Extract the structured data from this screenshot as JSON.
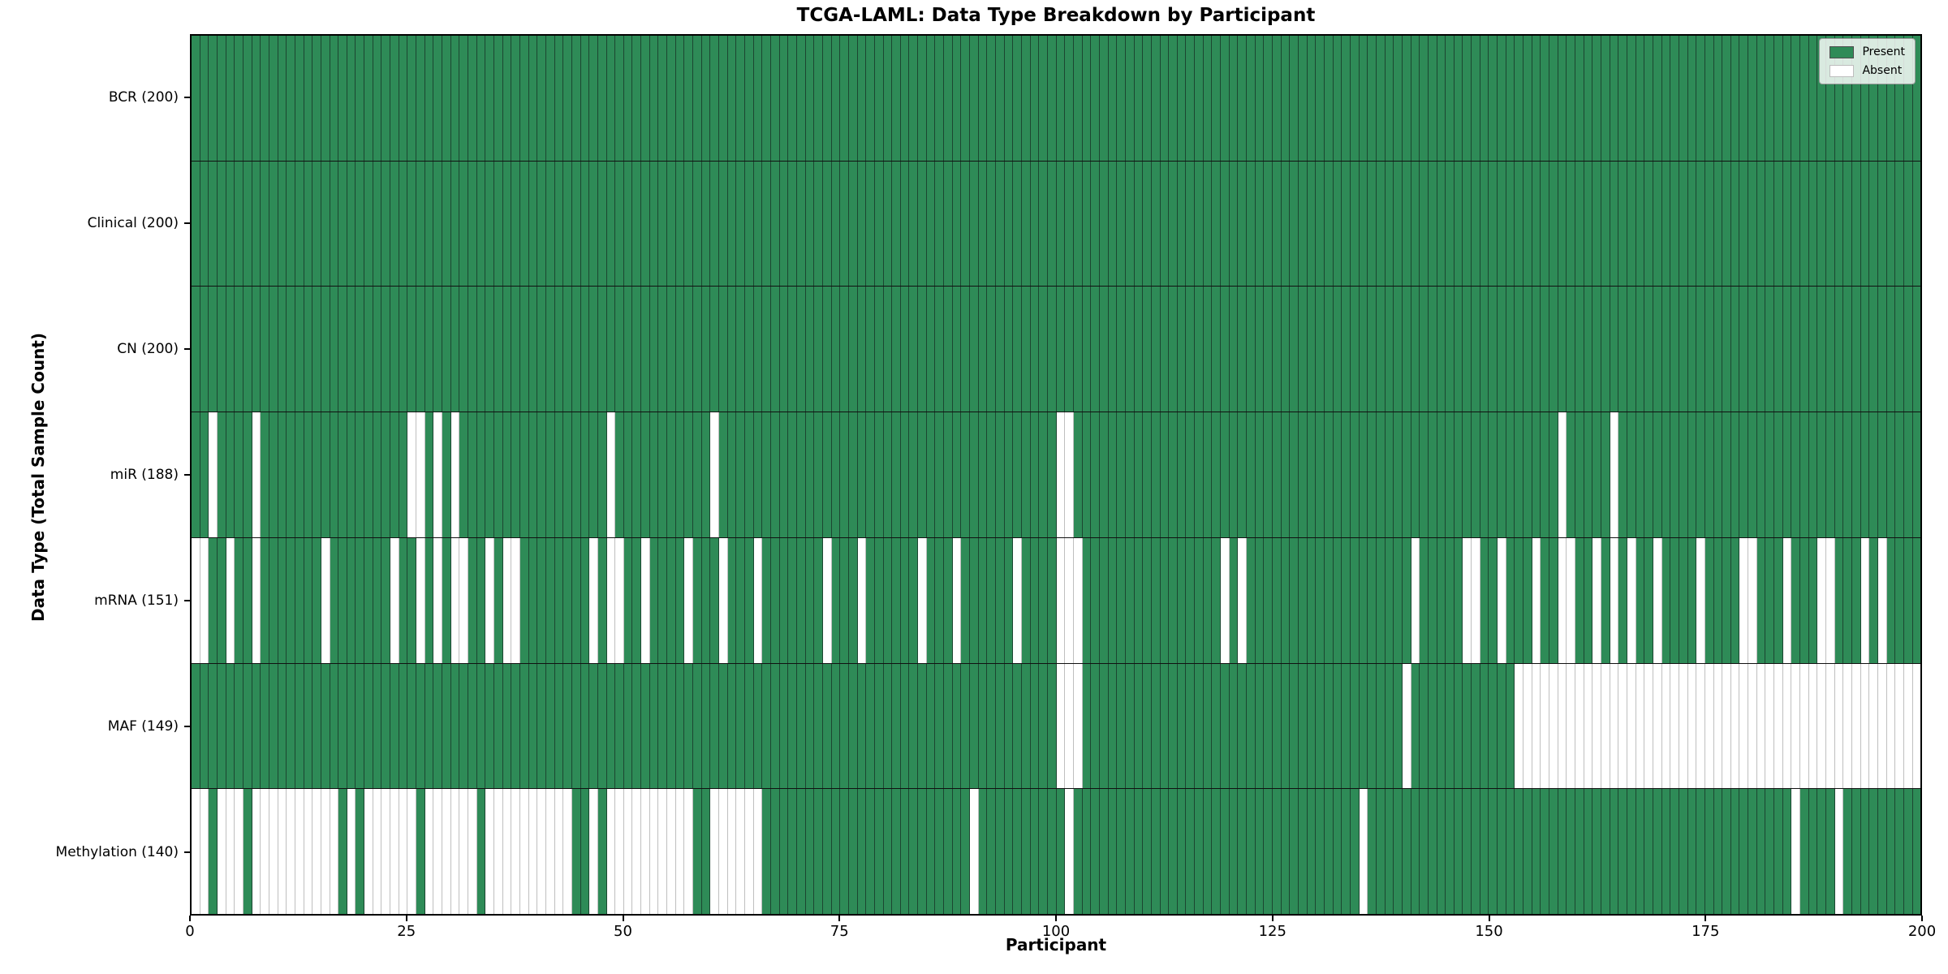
{
  "title": "TCGA-LAML: Data Type Breakdown by Participant",
  "xlabel": "Participant",
  "ylabel": "Data Type (Total Sample Count)",
  "legend": {
    "present_label": "Present",
    "absent_label": "Absent"
  },
  "colors": {
    "present": "#2e8b57",
    "present_edge": "#1c4631",
    "absent": "#ffffff",
    "absent_edge": "#bfbfbf"
  },
  "chart_data": {
    "type": "heatmap",
    "x_axis": {
      "label": "Participant",
      "range": [
        0,
        200
      ],
      "ticks": [
        0,
        25,
        50,
        75,
        100,
        125,
        150,
        175,
        200
      ]
    },
    "n_participants": 200,
    "legend_position": "upper right",
    "cell_values": "present=1, absent=0; absent lists give participant indices (0-199) missing that data type",
    "rows": [
      {
        "label": "BCR (200)",
        "data_type": "BCR",
        "present_count": 200,
        "absent": []
      },
      {
        "label": "Clinical (200)",
        "data_type": "Clinical",
        "present_count": 200,
        "absent": []
      },
      {
        "label": "CN (200)",
        "data_type": "CN",
        "present_count": 200,
        "absent": []
      },
      {
        "label": "miR (188)",
        "data_type": "miR",
        "present_count": 188,
        "absent": [
          2,
          7,
          25,
          26,
          28,
          30,
          48,
          60,
          100,
          101,
          158,
          164
        ]
      },
      {
        "label": "mRNA (151)",
        "data_type": "mRNA",
        "present_count": 151,
        "absent": [
          0,
          1,
          4,
          7,
          15,
          23,
          26,
          28,
          30,
          31,
          34,
          36,
          37,
          46,
          48,
          49,
          52,
          57,
          61,
          65,
          73,
          77,
          84,
          88,
          95,
          100,
          101,
          102,
          119,
          121,
          141,
          147,
          148,
          151,
          155,
          158,
          159,
          162,
          164,
          166,
          169,
          174,
          179,
          180,
          184,
          188,
          189,
          193,
          195
        ]
      },
      {
        "label": "MAF (149)",
        "data_type": "MAF",
        "present_count": 149,
        "absent": [
          100,
          101,
          102,
          140,
          153,
          154,
          155,
          156,
          157,
          158,
          159,
          160,
          161,
          162,
          163,
          164,
          165,
          166,
          167,
          168,
          169,
          170,
          171,
          172,
          173,
          174,
          175,
          176,
          177,
          178,
          179,
          180,
          181,
          182,
          183,
          184,
          185,
          186,
          187,
          188,
          189,
          190,
          191,
          192,
          193,
          194,
          195,
          196,
          197,
          198,
          199
        ]
      },
      {
        "label": "Methylation (140)",
        "data_type": "Methylation",
        "present_count": 140,
        "absent": [
          0,
          1,
          3,
          4,
          5,
          7,
          8,
          9,
          10,
          11,
          12,
          13,
          14,
          15,
          16,
          18,
          20,
          21,
          22,
          23,
          24,
          25,
          27,
          28,
          29,
          30,
          31,
          32,
          34,
          35,
          36,
          37,
          38,
          39,
          40,
          41,
          42,
          43,
          46,
          48,
          49,
          50,
          51,
          52,
          53,
          54,
          55,
          56,
          57,
          60,
          61,
          62,
          63,
          64,
          65,
          90,
          101,
          135,
          185,
          190
        ]
      }
    ]
  }
}
